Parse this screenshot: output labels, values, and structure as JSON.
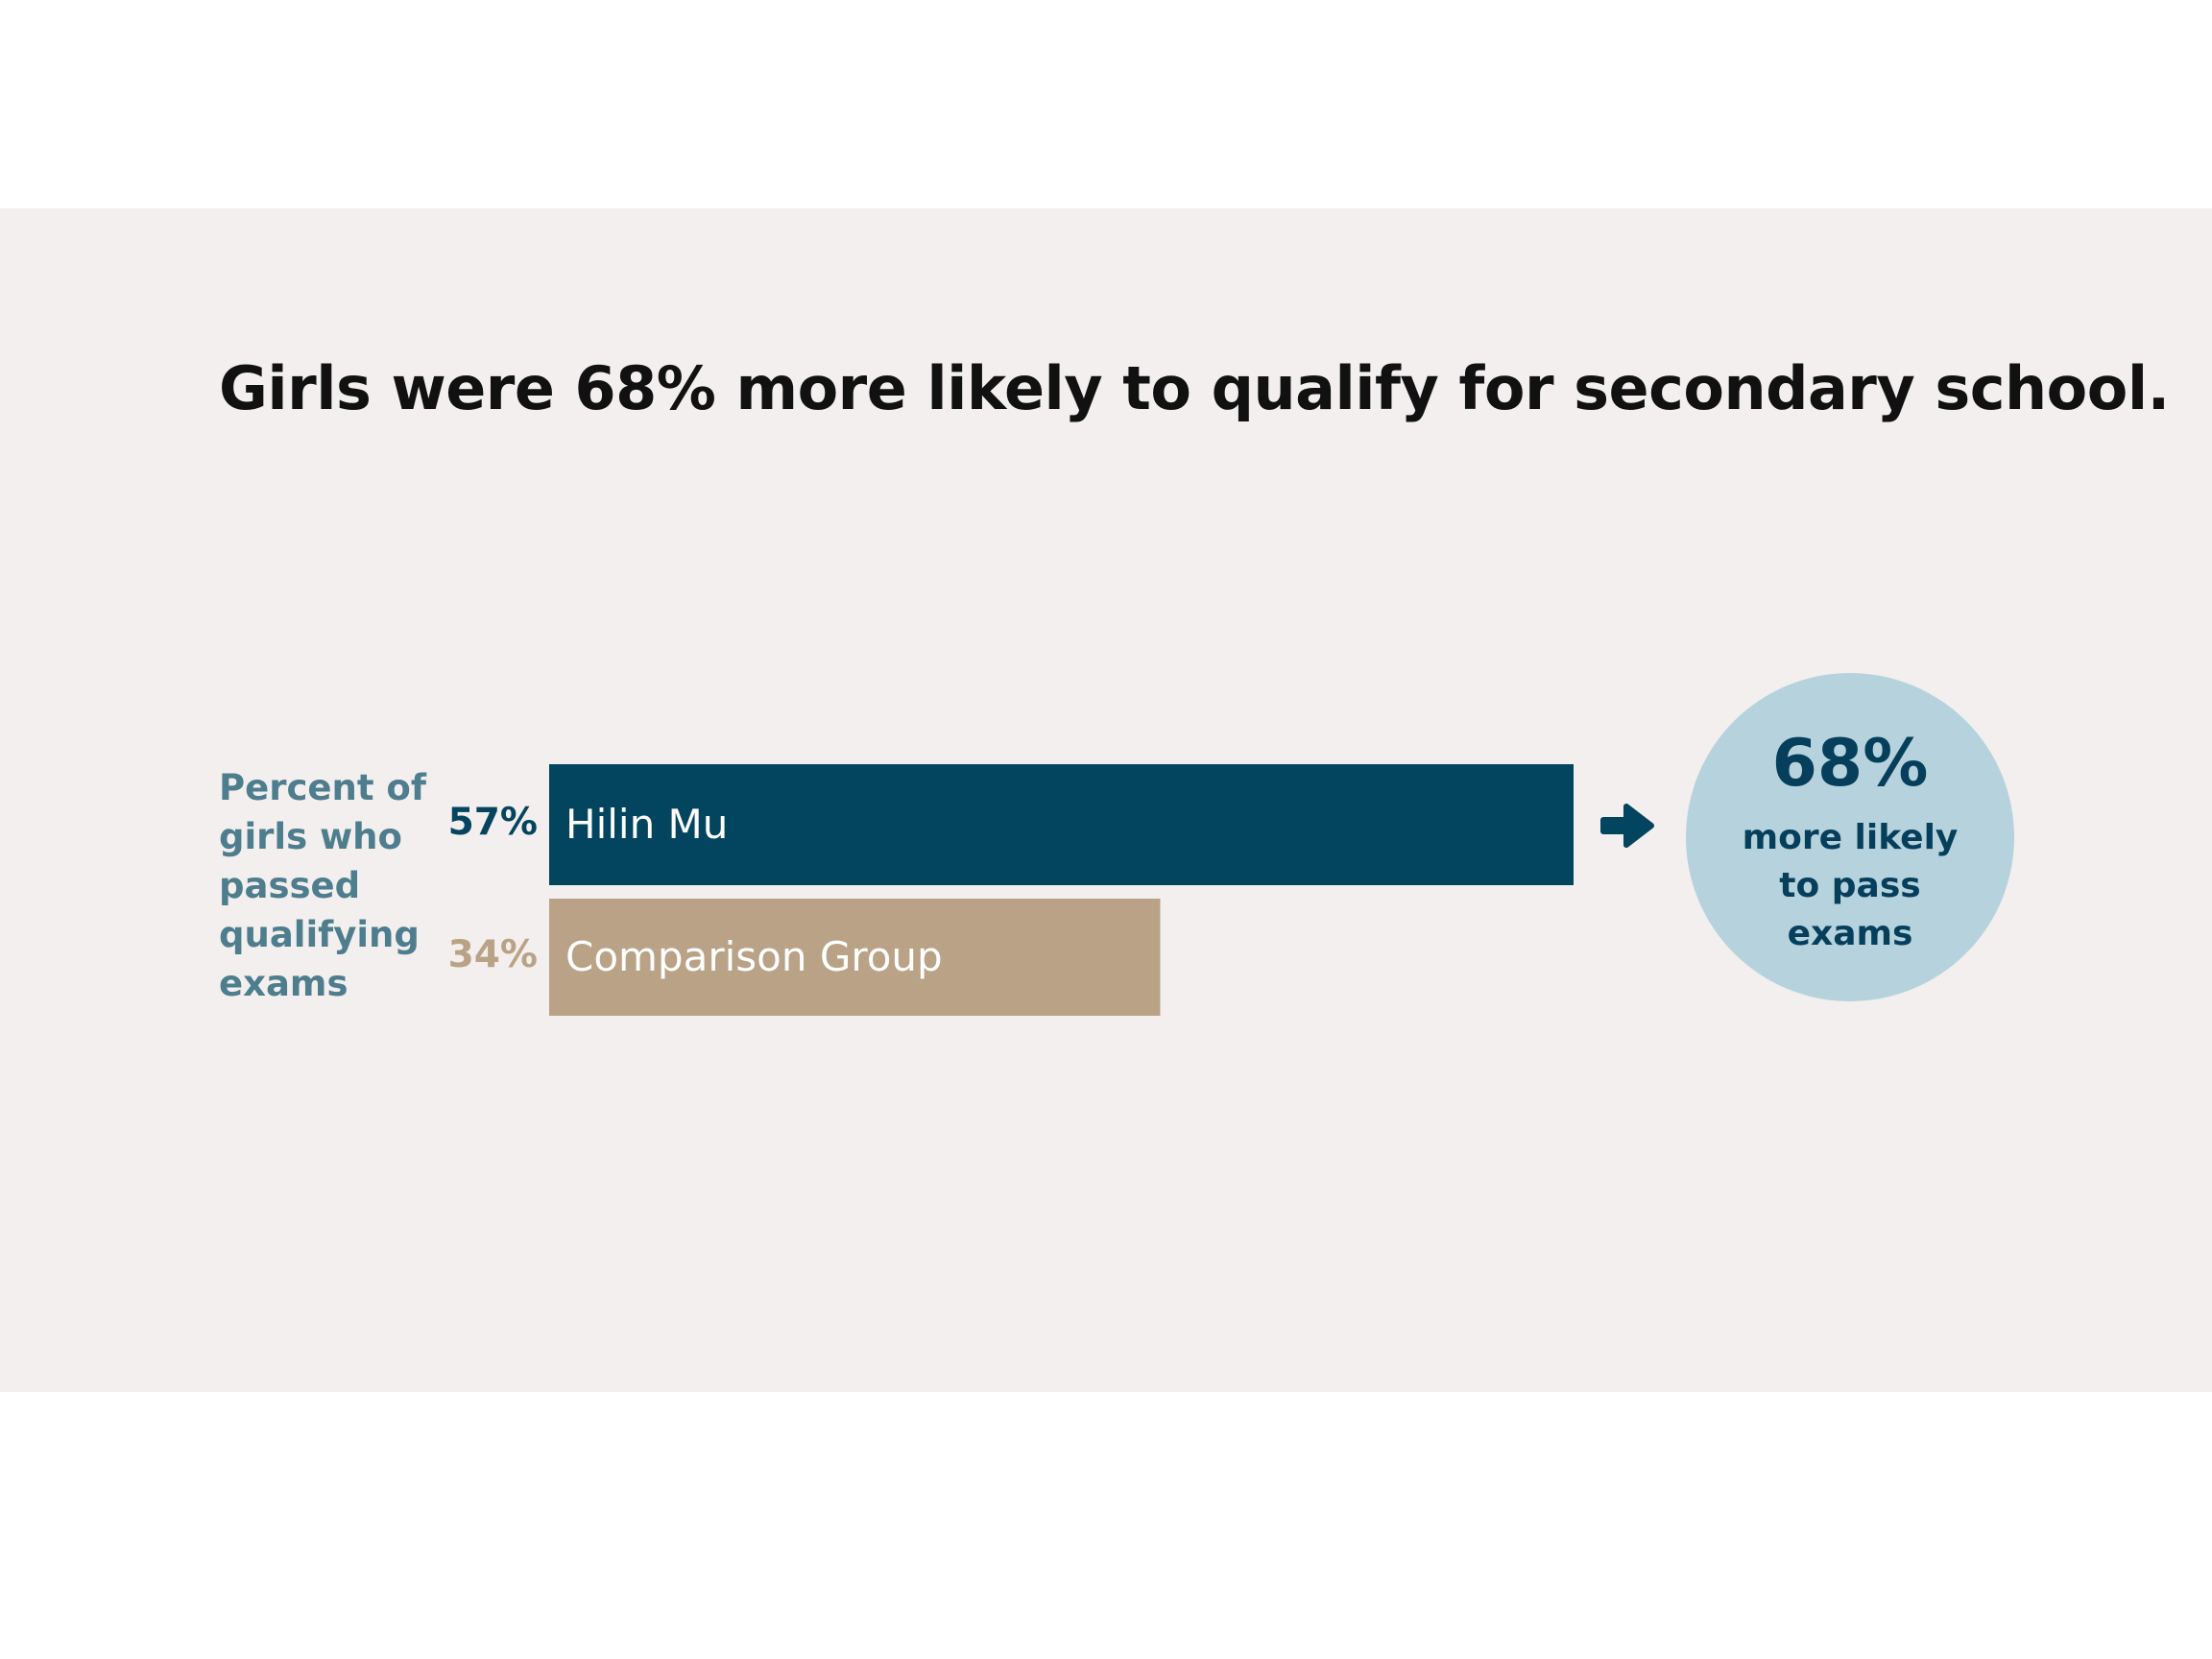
{
  "colors": {
    "primary": "#03445e",
    "comparison": "#b9a285",
    "bubble": "#b6d3dd",
    "label": "#4e7d8e",
    "panel": "#f2efee"
  },
  "chart_data": {
    "type": "bar",
    "orientation": "horizontal",
    "title": "Girls were 68% more likely to qualify for secondary school.",
    "ylabel": "Percent of girls who passed qualifying exams",
    "categories": [
      "Hilin Mu",
      "Comparison Group"
    ],
    "values": [
      57,
      34
    ],
    "value_labels": [
      "57%",
      "34%"
    ],
    "xlim": [
      0,
      100
    ],
    "grid": false,
    "callout": {
      "value": "68%",
      "text": "more likely to pass exams"
    }
  }
}
